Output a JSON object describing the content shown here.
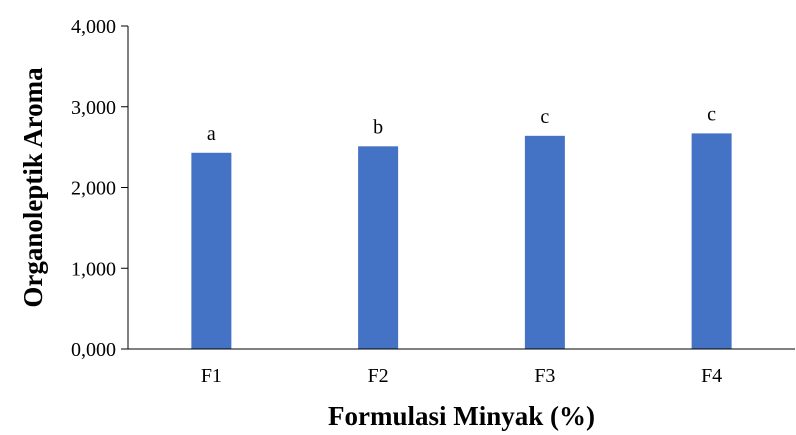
{
  "chart_data": {
    "type": "bar",
    "title": "",
    "xlabel": "Formulasi Minyak (%)",
    "ylabel": "Organoleptik Aroma",
    "categories": [
      "F1",
      "F2",
      "F3",
      "F4"
    ],
    "values": [
      2.43,
      2.51,
      2.64,
      2.67
    ],
    "data_labels": [
      "a",
      "b",
      "c",
      "c"
    ],
    "ylim": [
      0,
      4
    ],
    "y_ticks": [
      0,
      1,
      2,
      3,
      4
    ],
    "y_tick_labels": [
      "0,000",
      "1,000",
      "2,000",
      "3,000",
      "4,000"
    ],
    "grid": false,
    "legend": "none",
    "bar_color": "#4472C4",
    "axis_color": "#000000"
  }
}
